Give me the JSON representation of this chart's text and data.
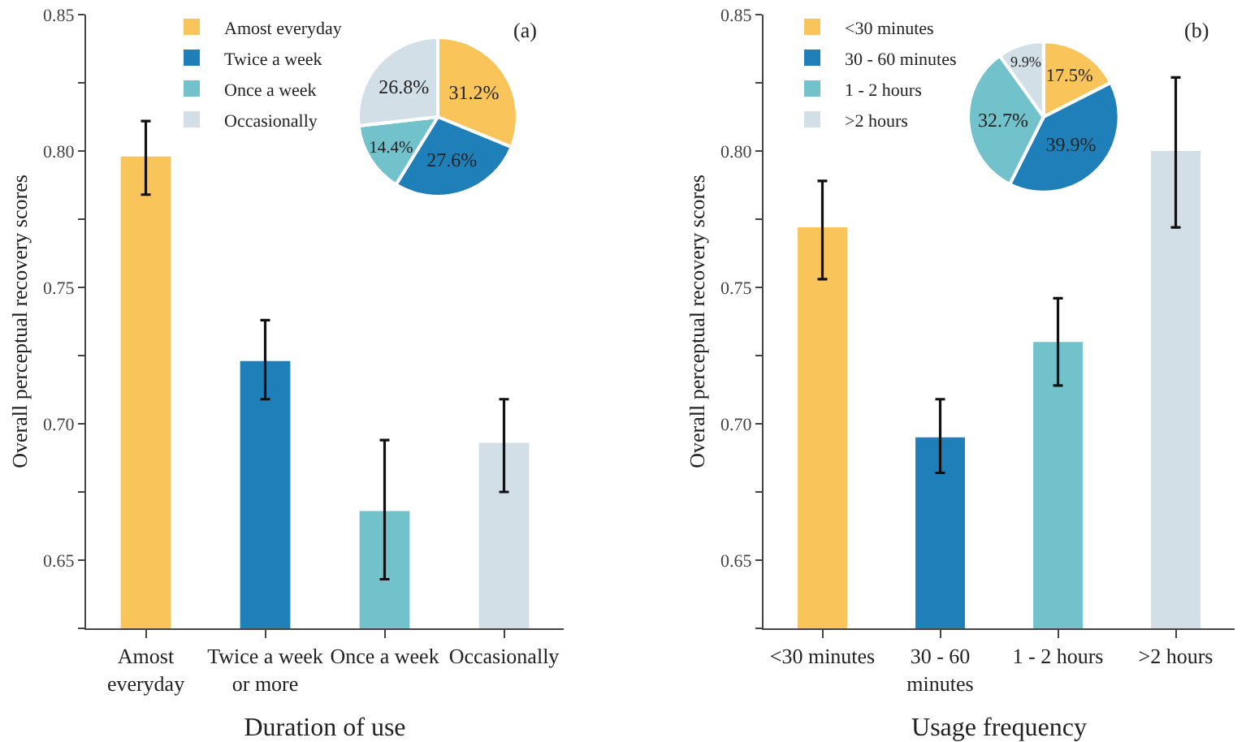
{
  "chart_data": [
    {
      "type": "bar",
      "xlabel": "Duration of use",
      "ylabel": "Overall perceptual recovery scores",
      "annotations": [
        "(a)"
      ],
      "categories": [
        "Amost everyday",
        "Twice a week or more",
        "Once a week",
        "Occasionally"
      ],
      "values": [
        0.798,
        0.723,
        0.668,
        0.693
      ],
      "colors": [
        "#f9c55b",
        "#1f7fb8",
        "#72c2cc",
        "#d3dfe6"
      ],
      "errors": [
        [
          0.784,
          0.811
        ],
        [
          0.709,
          0.738
        ],
        [
          0.643,
          0.694
        ],
        [
          0.675,
          0.709
        ]
      ],
      "ylim": [
        0.625,
        0.85
      ],
      "yticks": [
        {
          "value": 0.625,
          "label": null
        },
        0.65,
        {
          "value": 0.675,
          "label": null
        },
        "0.70",
        {
          "value": 0.725,
          "label": null
        },
        0.75,
        {
          "value": 0.775,
          "label": null
        },
        "0.80",
        {
          "value": 0.825,
          "label": null
        },
        0.85
      ],
      "grid": false
    },
    {
      "type": "pie",
      "categories": [
        "Amost everyday",
        "Twice a week",
        "Once a week",
        "Occasionally"
      ],
      "values": [
        31.2,
        27.6,
        14.4,
        26.8
      ],
      "value_labels": [
        "31.2%",
        "27.6%",
        "14.4%",
        "26.8%"
      ],
      "colors": [
        "#f9c55b",
        "#1f7fb8",
        "#72c2cc",
        "#d3dfe6"
      ],
      "legend": "top left"
    },
    {
      "type": "bar",
      "xlabel": "Usage frequency",
      "ylabel": "Overall perceptual recovery scores",
      "annotations": [
        "(b)"
      ],
      "categories": [
        "<30 minutes",
        "30 - 60 minutes",
        "1 - 2 hours",
        ">2 hours"
      ],
      "values": [
        0.772,
        0.695,
        0.73,
        0.8
      ],
      "colors": [
        "#f9c55b",
        "#1f7fb8",
        "#72c2cc",
        "#d3dfe6"
      ],
      "errors": [
        [
          0.753,
          0.789
        ],
        [
          0.682,
          0.709
        ],
        [
          0.714,
          0.746
        ],
        [
          0.772,
          0.827
        ]
      ],
      "ylim": [
        0.625,
        0.85
      ],
      "yticks": [
        {
          "value": 0.625,
          "label": null
        },
        0.65,
        {
          "value": 0.675,
          "label": null
        },
        "0.70",
        {
          "value": 0.725,
          "label": null
        },
        0.75,
        {
          "value": 0.775,
          "label": null
        },
        "0.80",
        {
          "value": 0.825,
          "label": null
        },
        0.85
      ],
      "grid": false
    },
    {
      "type": "pie",
      "categories": [
        "<30 minutes",
        "30 - 60 minutes",
        "1 - 2 hours",
        ">2 hours"
      ],
      "values": [
        17.5,
        39.9,
        32.7,
        9.9
      ],
      "value_labels": [
        "17.5%",
        "39.9%",
        "32.7%",
        "9.9%"
      ],
      "colors": [
        "#f9c55b",
        "#1f7fb8",
        "#72c2cc",
        "#d3dfe6"
      ],
      "legend": "top left"
    }
  ]
}
